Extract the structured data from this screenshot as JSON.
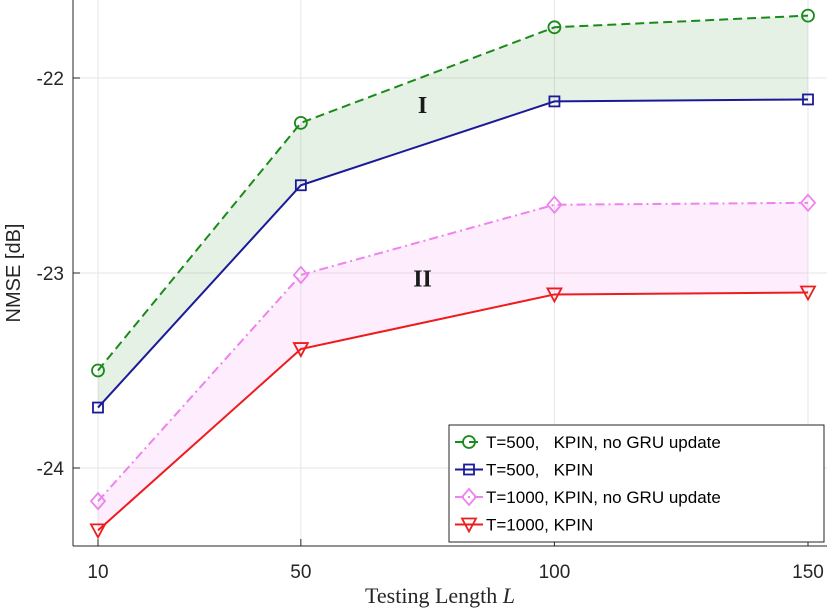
{
  "chart_data": {
    "type": "line",
    "title": "",
    "xlabel": "Testing Length ",
    "xlabel_var": "L",
    "ylabel": "NMSE [dB]",
    "x": [
      10,
      50,
      100,
      150
    ],
    "x_tick_labels": [
      "10",
      "50",
      "100",
      "150"
    ],
    "y_tick_labels": [
      "-22",
      "-23",
      "-24"
    ],
    "xlim": [
      10,
      150
    ],
    "ylim": [
      -24.4,
      -21.6
    ],
    "grid": true,
    "legend_position": "bottom-right",
    "series": [
      {
        "name": "T=500,   KPIN, no GRU update",
        "values": [
          -23.5,
          -22.23,
          -21.74,
          -21.68
        ],
        "color": "#1a8a1a",
        "dash": "dashed",
        "marker": "circle"
      },
      {
        "name": "T=500,   KPIN",
        "values": [
          -23.69,
          -22.55,
          -22.12,
          -22.11
        ],
        "color": "#1a1a99",
        "dash": "solid",
        "marker": "square"
      },
      {
        "name": "T=1000, KPIN, no GRU update",
        "values": [
          -24.17,
          -23.01,
          -22.65,
          -22.64
        ],
        "color": "#ee82ee",
        "dash": "dashdot",
        "marker": "diamond"
      },
      {
        "name": "T=1000, KPIN",
        "values": [
          -24.32,
          -23.39,
          -23.11,
          -23.1
        ],
        "color": "#ee1c1c",
        "dash": "solid",
        "marker": "triangle-down"
      }
    ],
    "bands": [
      {
        "label": "I",
        "upper_series": 0,
        "lower_series": 1,
        "color": "#2e8b2e",
        "opacity": 0.12,
        "label_x": 74,
        "label_y": -22.18
      },
      {
        "label": "II",
        "upper_series": 2,
        "lower_series": 3,
        "color": "#f08cf0",
        "opacity": 0.16,
        "label_x": 74,
        "label_y": -23.07
      }
    ]
  }
}
